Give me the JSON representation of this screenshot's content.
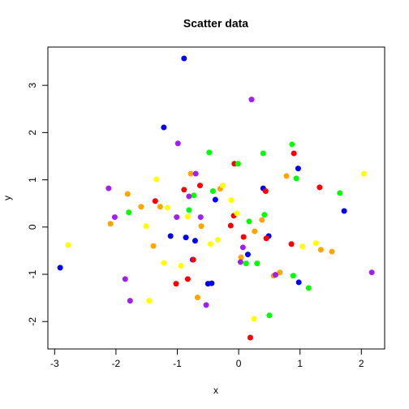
{
  "chart_data": {
    "type": "scatter",
    "title": "Scatter data",
    "x_label": "x",
    "y_label": "y",
    "xlim": [
      -3.11,
      2.38
    ],
    "ylim": [
      -2.58,
      3.81
    ],
    "xticks": [
      -3,
      -2,
      -1,
      0,
      1,
      2
    ],
    "yticks": [
      -2,
      -1,
      0,
      1,
      2,
      3
    ],
    "series": [
      {
        "color": "#0000ff",
        "x": [
          -0.89,
          -1.22,
          0.97,
          0.4,
          -0.38,
          1.72,
          -1.11,
          -0.86,
          -0.71,
          0.49,
          0.15,
          -0.75,
          -2.91,
          0.98,
          -0.44,
          -0.5
        ],
        "y": [
          3.57,
          2.11,
          1.24,
          0.82,
          0.58,
          0.34,
          -0.19,
          -0.22,
          -0.29,
          -0.19,
          -0.58,
          -0.69,
          -0.86,
          -1.17,
          -1.19,
          -1.2
        ]
      },
      {
        "color": "#ff0000",
        "x": [
          0.9,
          -0.07,
          1.32,
          0.44,
          -0.63,
          -0.89,
          -1.36,
          -0.08,
          -0.13,
          0.08,
          0.45,
          0.86,
          -0.74,
          -0.83,
          -1.02,
          0.19
        ],
        "y": [
          1.56,
          1.34,
          0.84,
          0.76,
          0.88,
          0.79,
          0.55,
          0.24,
          0.03,
          -0.21,
          -0.24,
          -0.36,
          -0.69,
          -1.1,
          -1.2,
          -2.34
        ]
      },
      {
        "color": "#00ff00",
        "x": [
          0.87,
          -0.48,
          0.4,
          -0.01,
          0.94,
          -0.42,
          -0.73,
          1.65,
          -0.81,
          0.42,
          -1.79,
          0.17,
          0.12,
          0.3,
          0.89,
          1.14,
          0.5
        ],
        "y": [
          1.75,
          1.58,
          1.56,
          1.34,
          1.03,
          0.76,
          0.67,
          0.72,
          0.36,
          0.26,
          0.31,
          0.12,
          -0.77,
          -0.77,
          -1.03,
          -1.29,
          -1.87
        ]
      },
      {
        "color": "#ffa500",
        "x": [
          -0.78,
          0.78,
          -0.3,
          -1.81,
          -1.59,
          -1.28,
          -2.09,
          -0.61,
          0.38,
          0.26,
          -1.39,
          0.04,
          1.34,
          1.52,
          0.67,
          0.57,
          -0.67
        ],
        "y": [
          1.13,
          1.08,
          0.81,
          0.7,
          0.43,
          0.43,
          0.07,
          0.02,
          0.15,
          -0.09,
          -0.4,
          -0.64,
          -0.48,
          -0.52,
          -0.96,
          -1.03,
          -1.49
        ]
      },
      {
        "color": "#ffff00",
        "x": [
          2.04,
          -1.34,
          -0.26,
          -1.16,
          -0.12,
          -0.83,
          -0.03,
          -1.51,
          -2.78,
          -0.34,
          -0.46,
          1.04,
          1.26,
          -0.94,
          -1.22,
          -1.46,
          0.25
        ],
        "y": [
          1.13,
          1.01,
          0.88,
          0.41,
          0.57,
          0.22,
          0.29,
          0.02,
          -0.38,
          -0.27,
          -0.36,
          -0.41,
          -0.34,
          -0.82,
          -0.76,
          -1.56,
          -1.94
        ]
      },
      {
        "color": "#a020f0",
        "x": [
          0.21,
          -0.99,
          -0.7,
          -0.81,
          -2.12,
          -2.02,
          -1.01,
          -0.62,
          0.07,
          0.03,
          0.6,
          2.17,
          -1.85,
          -1.77,
          -0.53
        ],
        "y": [
          2.7,
          1.77,
          1.13,
          0.65,
          0.82,
          0.21,
          0.21,
          0.21,
          -0.43,
          -0.74,
          -1.01,
          -0.96,
          -1.1,
          -1.56,
          -1.65
        ]
      }
    ]
  }
}
